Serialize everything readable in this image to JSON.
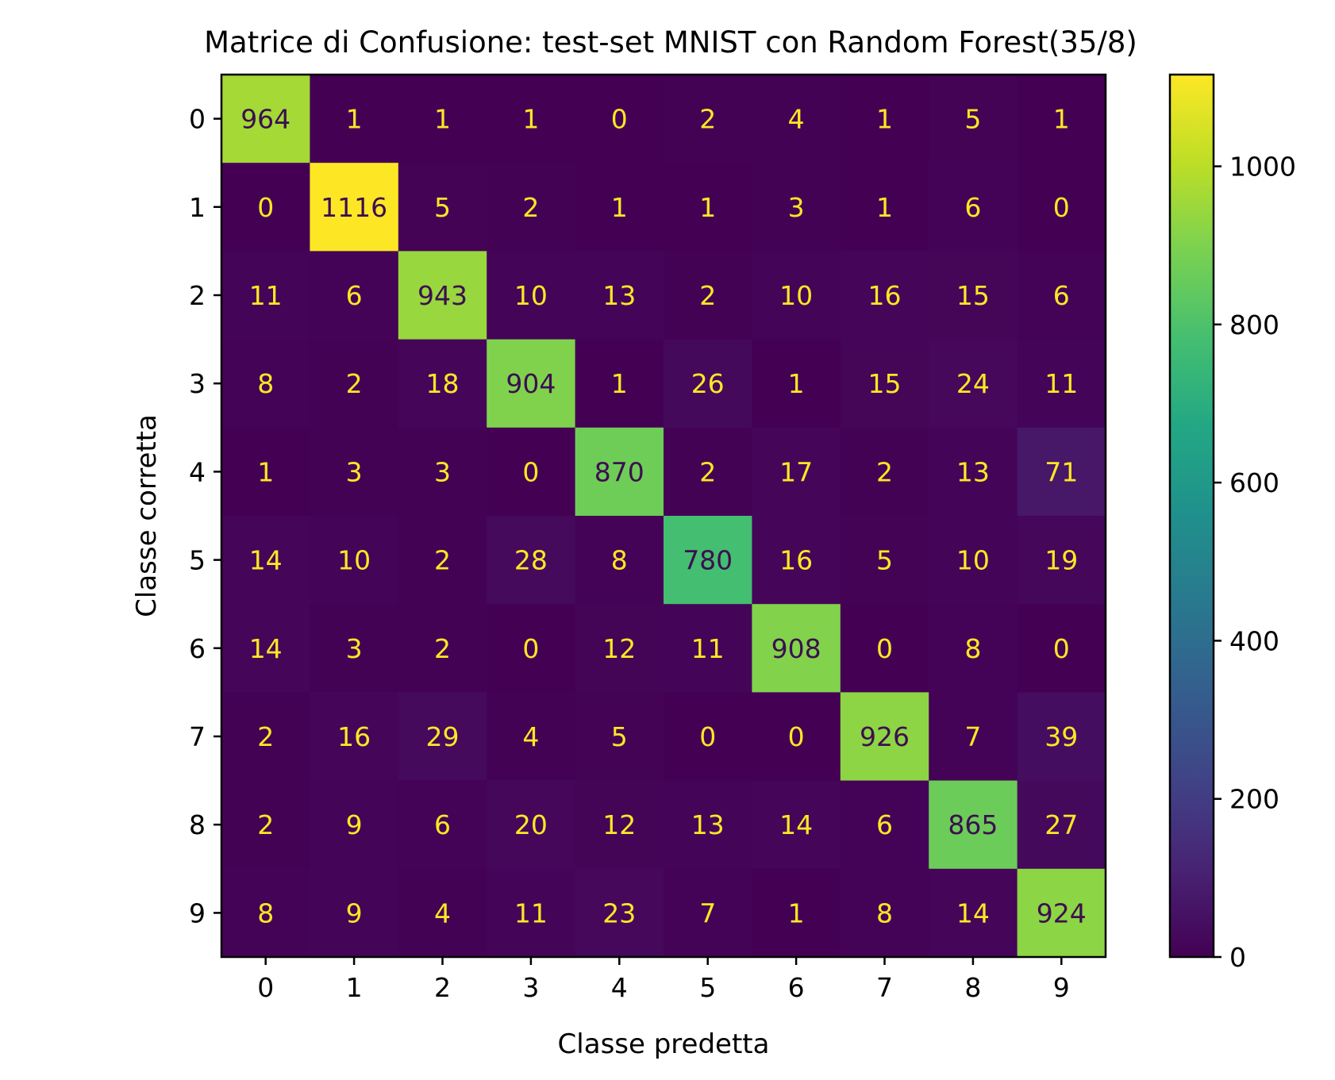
{
  "chart_data": {
    "type": "heatmap",
    "title": "Matrice di Confusione: test-set MNIST con  Random Forest(35/8)",
    "xlabel": "Classe predetta",
    "ylabel": "Classe corretta",
    "x_categories": [
      "0",
      "1",
      "2",
      "3",
      "4",
      "5",
      "6",
      "7",
      "8",
      "9"
    ],
    "y_categories": [
      "0",
      "1",
      "2",
      "3",
      "4",
      "5",
      "6",
      "7",
      "8",
      "9"
    ],
    "values": [
      [
        964,
        1,
        1,
        1,
        0,
        2,
        4,
        1,
        5,
        1
      ],
      [
        0,
        1116,
        5,
        2,
        1,
        1,
        3,
        1,
        6,
        0
      ],
      [
        11,
        6,
        943,
        10,
        13,
        2,
        10,
        16,
        15,
        6
      ],
      [
        8,
        2,
        18,
        904,
        1,
        26,
        1,
        15,
        24,
        11
      ],
      [
        1,
        3,
        3,
        0,
        870,
        2,
        17,
        2,
        13,
        71
      ],
      [
        14,
        10,
        2,
        28,
        8,
        780,
        16,
        5,
        10,
        19
      ],
      [
        14,
        3,
        2,
        0,
        12,
        11,
        908,
        0,
        8,
        0
      ],
      [
        2,
        16,
        29,
        4,
        5,
        0,
        0,
        926,
        7,
        39
      ],
      [
        2,
        9,
        6,
        20,
        12,
        13,
        14,
        6,
        865,
        27
      ],
      [
        8,
        9,
        4,
        11,
        23,
        7,
        1,
        8,
        14,
        924
      ]
    ],
    "colormap": "viridis",
    "colorbar": {
      "range": [
        0,
        1116
      ],
      "ticks": [
        0,
        200,
        400,
        600,
        800,
        1000
      ]
    },
    "grid": false,
    "legend": "none"
  }
}
